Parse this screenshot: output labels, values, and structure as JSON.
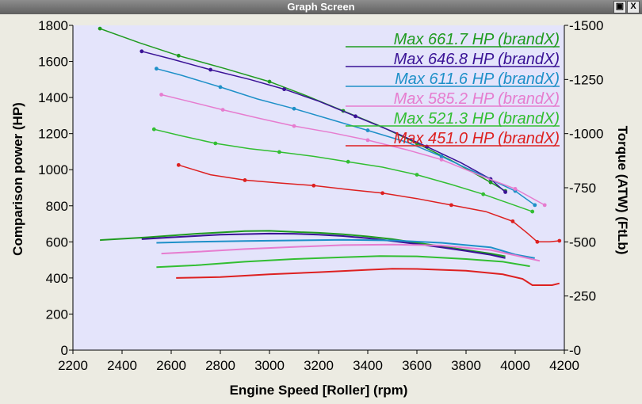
{
  "window": {
    "title": "Graph Screen",
    "restore_icon": "restore-icon",
    "close_label": "X"
  },
  "chart_data": {
    "type": "line",
    "xlabel": "Engine Speed [Roller] (rpm)",
    "ylabel": "Comparison power (HP)",
    "y2label": "Torque (ATW) (FtLb)",
    "xlim": [
      2200,
      4200
    ],
    "ylim": [
      0,
      1800
    ],
    "y2lim": [
      0,
      1500
    ],
    "xticks": [
      2200,
      2400,
      2600,
      2800,
      3000,
      3200,
      3400,
      3600,
      3800,
      4000,
      4200
    ],
    "yticks": [
      0,
      200,
      400,
      600,
      800,
      1000,
      1200,
      1400,
      1600,
      1800
    ],
    "y2ticks": [
      0,
      250,
      500,
      750,
      1000,
      1250,
      1500
    ],
    "grid": false,
    "legend_position": "top-right",
    "colors": {
      "plot_bg": "#e4e4fb",
      "outer_bg": "#ecebe2"
    },
    "series": [
      {
        "name": "Max 661.7 HP (brandX)",
        "color": "#1f9b1f",
        "power": [
          [
            2310,
            610
          ],
          [
            2500,
            625
          ],
          [
            2700,
            645
          ],
          [
            2900,
            660
          ],
          [
            3000,
            661
          ],
          [
            3100,
            655
          ],
          [
            3200,
            650
          ],
          [
            3300,
            642
          ],
          [
            3400,
            630
          ],
          [
            3500,
            615
          ],
          [
            3600,
            595
          ],
          [
            3700,
            575
          ],
          [
            3800,
            555
          ],
          [
            3900,
            535
          ],
          [
            3960,
            520
          ]
        ],
        "torque": [
          [
            2310,
            1485
          ],
          [
            2470,
            1420
          ],
          [
            2630,
            1360
          ],
          [
            2820,
            1300
          ],
          [
            3000,
            1240
          ],
          [
            3150,
            1175
          ],
          [
            3300,
            1105
          ],
          [
            3450,
            1035
          ],
          [
            3600,
            955
          ],
          [
            3750,
            870
          ],
          [
            3900,
            775
          ],
          [
            3960,
            735
          ]
        ]
      },
      {
        "name": "Max 646.8 HP (brandX)",
        "color": "#3a1296",
        "power": [
          [
            2480,
            615
          ],
          [
            2600,
            625
          ],
          [
            2800,
            640
          ],
          [
            3000,
            646
          ],
          [
            3100,
            645
          ],
          [
            3200,
            640
          ],
          [
            3300,
            632
          ],
          [
            3400,
            620
          ],
          [
            3500,
            605
          ],
          [
            3600,
            588
          ],
          [
            3700,
            570
          ],
          [
            3800,
            550
          ],
          [
            3900,
            528
          ],
          [
            3960,
            510
          ]
        ],
        "torque": [
          [
            2480,
            1380
          ],
          [
            2600,
            1345
          ],
          [
            2760,
            1295
          ],
          [
            2920,
            1250
          ],
          [
            3060,
            1205
          ],
          [
            3200,
            1150
          ],
          [
            3350,
            1080
          ],
          [
            3500,
            1010
          ],
          [
            3640,
            940
          ],
          [
            3780,
            865
          ],
          [
            3900,
            790
          ],
          [
            3960,
            730
          ]
        ]
      },
      {
        "name": "Max 611.6 HP (brandX)",
        "color": "#1e90c8",
        "power": [
          [
            2540,
            595
          ],
          [
            2700,
            600
          ],
          [
            2900,
            605
          ],
          [
            3100,
            608
          ],
          [
            3300,
            611
          ],
          [
            3500,
            608
          ],
          [
            3700,
            595
          ],
          [
            3900,
            570
          ],
          [
            4000,
            530
          ],
          [
            4080,
            510
          ]
        ],
        "torque": [
          [
            2540,
            1300
          ],
          [
            2640,
            1270
          ],
          [
            2800,
            1215
          ],
          [
            2950,
            1160
          ],
          [
            3100,
            1115
          ],
          [
            3250,
            1065
          ],
          [
            3400,
            1015
          ],
          [
            3560,
            960
          ],
          [
            3700,
            895
          ],
          [
            3850,
            815
          ],
          [
            4000,
            735
          ],
          [
            4080,
            670
          ]
        ]
      },
      {
        "name": "Max 585.2 HP (brandX)",
        "color": "#e67ccf",
        "power": [
          [
            2560,
            535
          ],
          [
            2700,
            545
          ],
          [
            2900,
            560
          ],
          [
            3100,
            572
          ],
          [
            3300,
            582
          ],
          [
            3500,
            585
          ],
          [
            3700,
            580
          ],
          [
            3900,
            555
          ],
          [
            4000,
            525
          ],
          [
            4100,
            495
          ]
        ],
        "torque": [
          [
            2560,
            1180
          ],
          [
            2650,
            1155
          ],
          [
            2810,
            1110
          ],
          [
            2960,
            1070
          ],
          [
            3100,
            1035
          ],
          [
            3250,
            1005
          ],
          [
            3400,
            970
          ],
          [
            3560,
            925
          ],
          [
            3700,
            880
          ],
          [
            3850,
            810
          ],
          [
            4000,
            745
          ],
          [
            4120,
            670
          ]
        ]
      },
      {
        "name": "Max 521.3 HP (brandX)",
        "color": "#32be32",
        "power": [
          [
            2540,
            460
          ],
          [
            2700,
            470
          ],
          [
            2900,
            490
          ],
          [
            3100,
            505
          ],
          [
            3300,
            515
          ],
          [
            3450,
            521
          ],
          [
            3600,
            520
          ],
          [
            3800,
            505
          ],
          [
            3950,
            490
          ],
          [
            4060,
            465
          ]
        ],
        "torque": [
          [
            2530,
            1020
          ],
          [
            2640,
            990
          ],
          [
            2780,
            955
          ],
          [
            2920,
            930
          ],
          [
            3040,
            915
          ],
          [
            3180,
            895
          ],
          [
            3320,
            870
          ],
          [
            3460,
            845
          ],
          [
            3600,
            810
          ],
          [
            3740,
            765
          ],
          [
            3870,
            720
          ],
          [
            4070,
            640
          ]
        ]
      },
      {
        "name": "Max 451.0 HP (brandX)",
        "color": "#dd2020",
        "power": [
          [
            2620,
            400
          ],
          [
            2800,
            405
          ],
          [
            3000,
            420
          ],
          [
            3200,
            432
          ],
          [
            3400,
            445
          ],
          [
            3500,
            451
          ],
          [
            3600,
            450
          ],
          [
            3800,
            440
          ],
          [
            3950,
            420
          ],
          [
            4030,
            395
          ],
          [
            4070,
            360
          ],
          [
            4150,
            360
          ],
          [
            4180,
            370
          ]
        ],
        "torque": [
          [
            2630,
            855
          ],
          [
            2760,
            810
          ],
          [
            2900,
            785
          ],
          [
            3040,
            772
          ],
          [
            3180,
            760
          ],
          [
            3320,
            742
          ],
          [
            3460,
            725
          ],
          [
            3600,
            700
          ],
          [
            3740,
            670
          ],
          [
            3880,
            640
          ],
          [
            3990,
            595
          ],
          [
            4050,
            540
          ],
          [
            4090,
            500
          ],
          [
            4140,
            500
          ],
          [
            4180,
            505
          ]
        ]
      }
    ]
  }
}
